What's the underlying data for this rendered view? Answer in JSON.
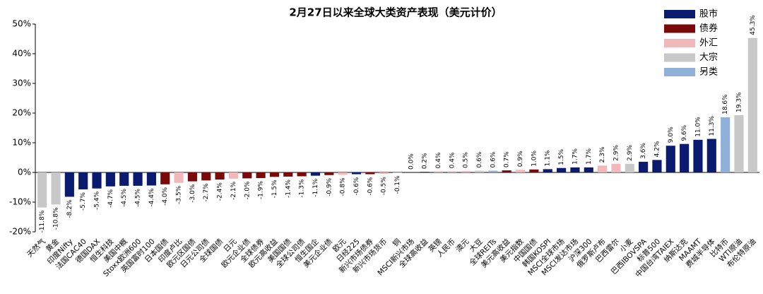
{
  "chart_data": {
    "type": "bar",
    "title": "2月27日以来全球大类资产表现（美元计价）",
    "categories": [
      "天然气",
      "黄金",
      "印度Nifty",
      "法国CAC40",
      "德国DAX",
      "恒生科技",
      "美国中概",
      "Stoxx欧洲600",
      "英国富时100",
      "日本国债",
      "印度卢比",
      "欧元区国债",
      "日元公司债",
      "全球国债",
      "日元",
      "欧元企业债",
      "全球债券",
      "欧元高收益",
      "美国国债",
      "全球公司债",
      "恒生国企",
      "美元企业债",
      "欧元",
      "日经225",
      "新兴市场债券",
      "新兴市场货币",
      "铜",
      "MSCI新兴市场",
      "全球高收益",
      "英镑",
      "人民币",
      "澳元",
      "大豆",
      "全球REITs",
      "美元高收益",
      "美元指数",
      "中国国债",
      "韩国KOSPI",
      "MSCI全球市场",
      "MSCI发达市场",
      "沪深300",
      "俄罗斯卢布",
      "巴西雷尔",
      "小麦",
      "巴西IBOVSPA",
      "标普500",
      "中国台湾TAIEX",
      "纳斯达克",
      "MAAMT",
      "费城半导体",
      "比特币",
      "WTI原油",
      "布伦特原油"
    ],
    "values": [
      -11.8,
      -10.8,
      -8.2,
      -5.7,
      -5.4,
      -4.7,
      -4.5,
      -4.5,
      -4.4,
      -4.0,
      -3.5,
      -3.0,
      -2.7,
      -2.4,
      -2.1,
      -2.0,
      -1.9,
      -1.5,
      -1.4,
      -1.3,
      -1.1,
      -0.9,
      -0.8,
      -0.6,
      -0.6,
      -0.5,
      -0.1,
      0.0,
      0.2,
      0.4,
      0.4,
      0.5,
      0.6,
      0.6,
      0.7,
      0.9,
      1.0,
      1.1,
      1.5,
      1.7,
      1.7,
      2.3,
      2.9,
      2.9,
      3.6,
      4.2,
      9.0,
      9.6,
      11.0,
      11.3,
      18.6,
      19.3,
      45.3
    ],
    "value_labels": [
      "-11.8%",
      "-10.8%",
      "-8.2%",
      "-5.7%",
      "-5.4%",
      "-4.7%",
      "-4.5%",
      "-4.5%",
      "-4.4%",
      "-4.0%",
      "-3.5%",
      "-3.0%",
      "-2.7%",
      "-2.4%",
      "-2.1%",
      "-2.0%",
      "-1.9%",
      "-1.5%",
      "-1.4%",
      "-1.3%",
      "-1.1%",
      "-0.9%",
      "-0.8%",
      "-0.6%",
      "-0.6%",
      "-0.5%",
      "-0.1%",
      "0.0%",
      "0.2%",
      "0.4%",
      "0.4%",
      "0.5%",
      "0.6%",
      "0.6%",
      "0.7%",
      "0.9%",
      "1.0%",
      "1.1%",
      "1.5%",
      "1.7%",
      "1.7%",
      "2.3%",
      "2.9%",
      "2.9%",
      "3.6%",
      "4.2%",
      "9.0%",
      "9.6%",
      "11.0%",
      "11.3%",
      "18.6%",
      "19.3%",
      "45.3%"
    ],
    "colors": [
      "#c8c8c8",
      "#c8c8c8",
      "#0a1a6e",
      "#0a1a6e",
      "#0a1a6e",
      "#0a1a6e",
      "#0a1a6e",
      "#0a1a6e",
      "#0a1a6e",
      "#7a0a0a",
      "#f0b8b8",
      "#7a0a0a",
      "#7a0a0a",
      "#7a0a0a",
      "#f0b8b8",
      "#7a0a0a",
      "#7a0a0a",
      "#7a0a0a",
      "#7a0a0a",
      "#7a0a0a",
      "#0a1a6e",
      "#7a0a0a",
      "#f0b8b8",
      "#0a1a6e",
      "#7a0a0a",
      "#f0b8b8",
      "#c8c8c8",
      "#0a1a6e",
      "#7a0a0a",
      "#f0b8b8",
      "#f0b8b8",
      "#f0b8b8",
      "#c8c8c8",
      "#8fb0d8",
      "#7a0a0a",
      "#f0b8b8",
      "#7a0a0a",
      "#0a1a6e",
      "#0a1a6e",
      "#0a1a6e",
      "#0a1a6e",
      "#f0b8b8",
      "#f0b8b8",
      "#c8c8c8",
      "#0a1a6e",
      "#0a1a6e",
      "#0a1a6e",
      "#0a1a6e",
      "#0a1a6e",
      "#0a1a6e",
      "#8fb0d8",
      "#c8c8c8",
      "#c8c8c8"
    ],
    "legend": [
      {
        "name": "股市",
        "color": "#0a1a6e"
      },
      {
        "name": "债券",
        "color": "#7a0a0a"
      },
      {
        "name": "外汇",
        "color": "#f0b8b8"
      },
      {
        "name": "大宗",
        "color": "#c8c8c8"
      },
      {
        "name": "另类",
        "color": "#8fb0d8"
      }
    ],
    "ylim": [
      -20,
      50
    ],
    "yticks": [
      {
        "value": -20,
        "label": "-20%"
      },
      {
        "value": -10,
        "label": "-10%"
      },
      {
        "value": 0,
        "label": "0%"
      },
      {
        "value": 10,
        "label": "10%"
      },
      {
        "value": 20,
        "label": "20%"
      },
      {
        "value": 30,
        "label": "30%"
      },
      {
        "value": 40,
        "label": "40%"
      },
      {
        "value": 50,
        "label": "50%"
      }
    ]
  }
}
